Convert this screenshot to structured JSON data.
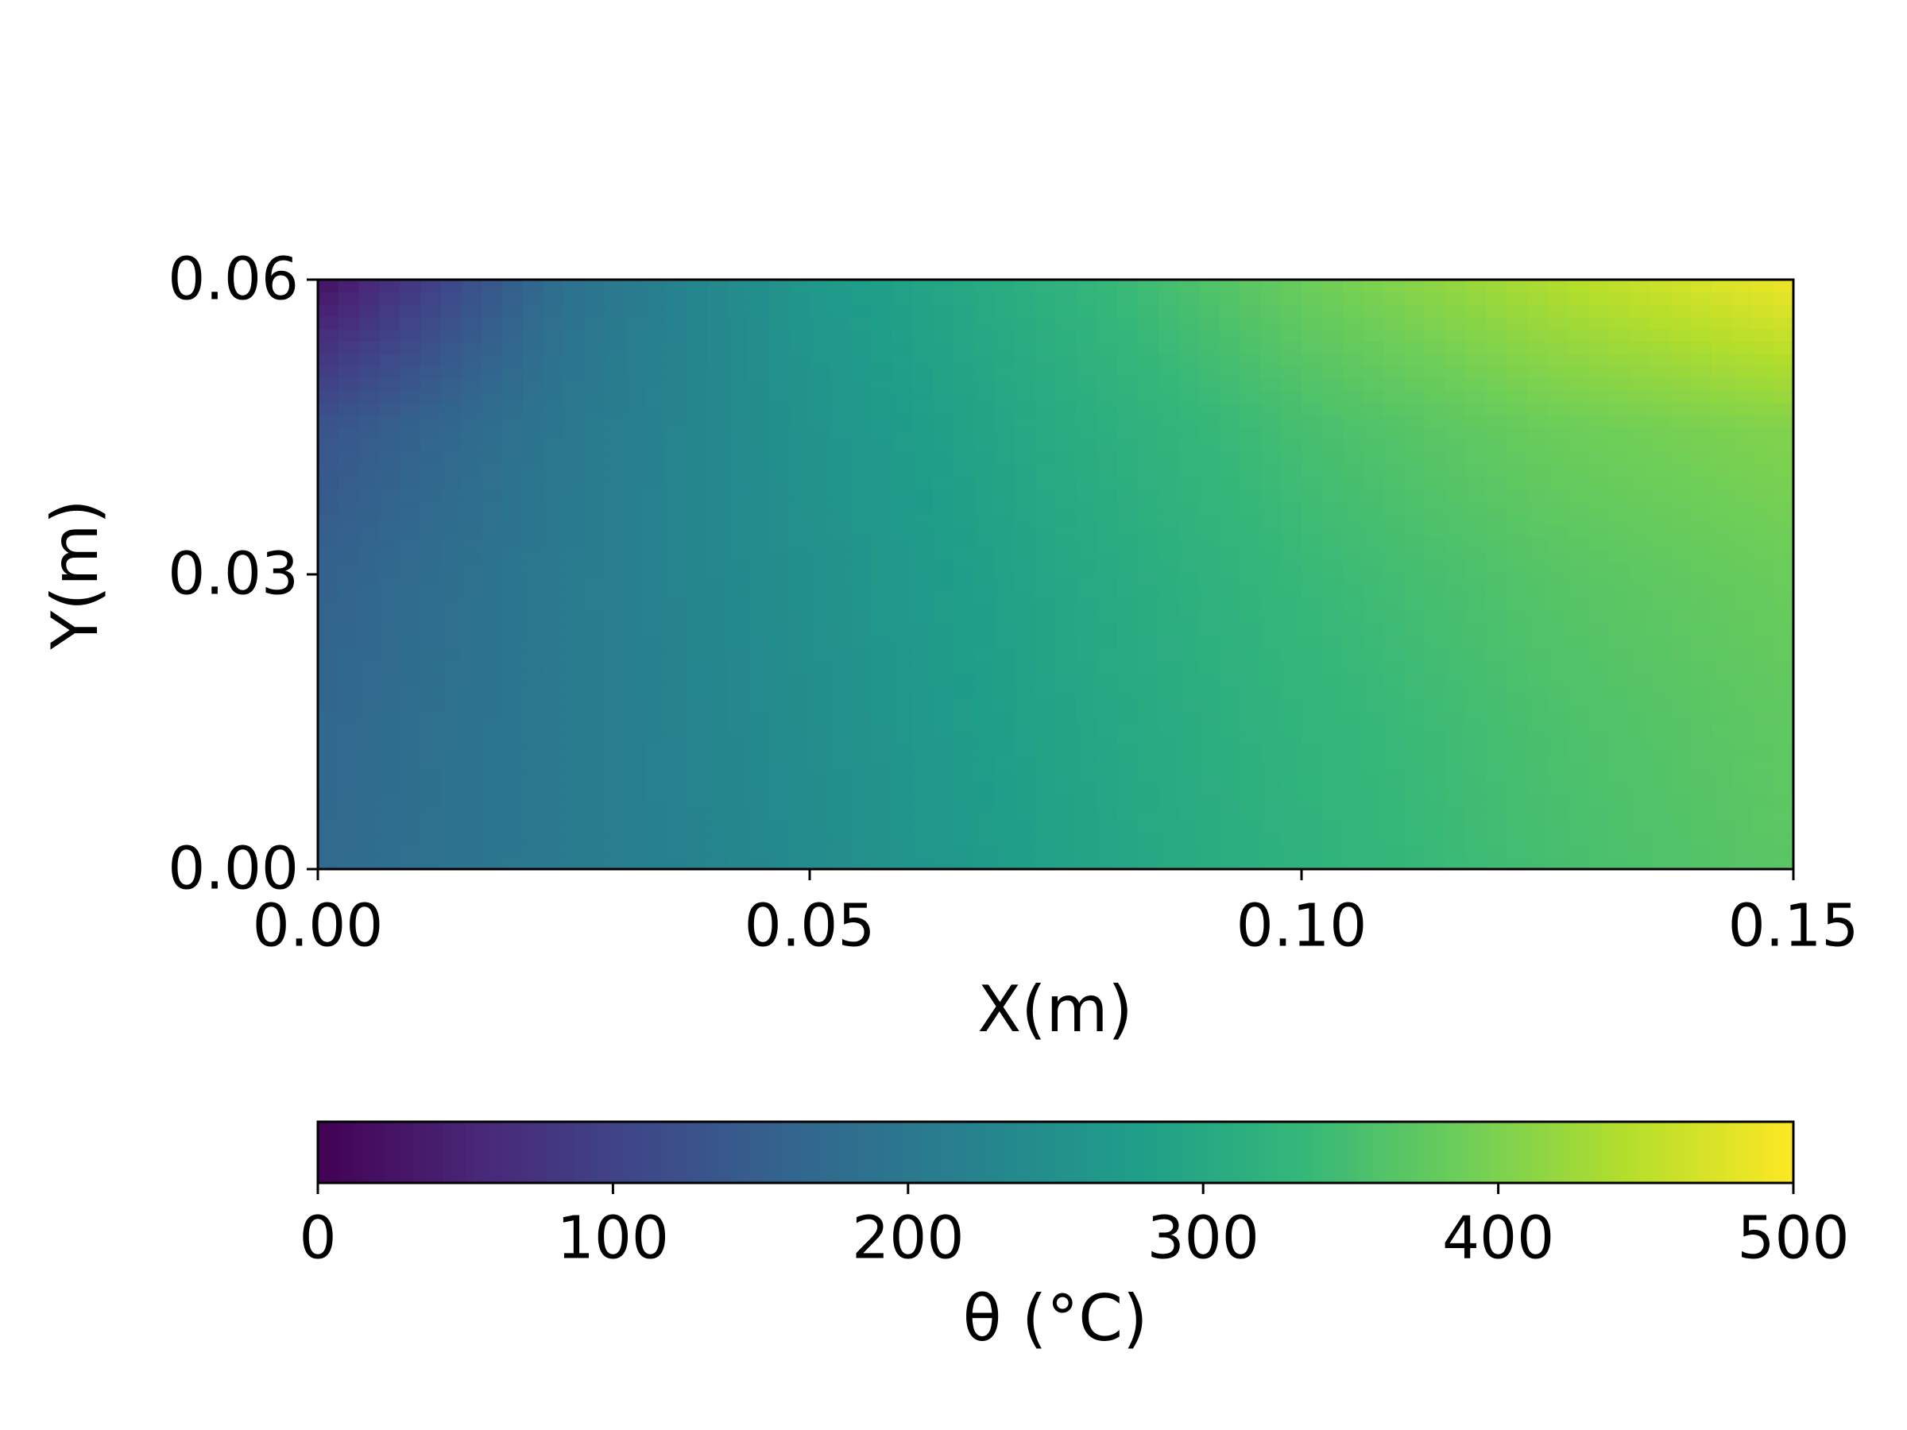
{
  "chart_data": {
    "type": "heatmap",
    "xlabel": "X(m)",
    "ylabel": "Y(m)",
    "colorbar_label": "θ (°C)",
    "colormap": "viridis",
    "x": [
      0,
      0.025,
      0.05,
      0.075,
      0.1,
      0.125,
      0.15
    ],
    "y": [
      0,
      0.015,
      0.03,
      0.045,
      0.06
    ],
    "z": [
      [
        170,
        205,
        240,
        285,
        320,
        350,
        370
      ],
      [
        165,
        205,
        245,
        290,
        325,
        355,
        375
      ],
      [
        155,
        205,
        250,
        295,
        335,
        365,
        385
      ],
      [
        130,
        200,
        255,
        305,
        350,
        385,
        405
      ],
      [
        20,
        185,
        265,
        320,
        385,
        440,
        490
      ]
    ],
    "xlim": [
      0,
      0.15
    ],
    "ylim": [
      0,
      0.06
    ],
    "xticks": [
      {
        "value": 0,
        "label": "0.00"
      },
      {
        "value": 0.05,
        "label": "0.05"
      },
      {
        "value": 0.1,
        "label": "0.10"
      },
      {
        "value": 0.15,
        "label": "0.15"
      }
    ],
    "yticks": [
      {
        "value": 0,
        "label": "0.00"
      },
      {
        "value": 0.03,
        "label": "0.03"
      },
      {
        "value": 0.06,
        "label": "0.06"
      }
    ],
    "clim": [
      0,
      500
    ],
    "cticks": [
      0,
      100,
      200,
      300,
      400,
      500
    ]
  }
}
